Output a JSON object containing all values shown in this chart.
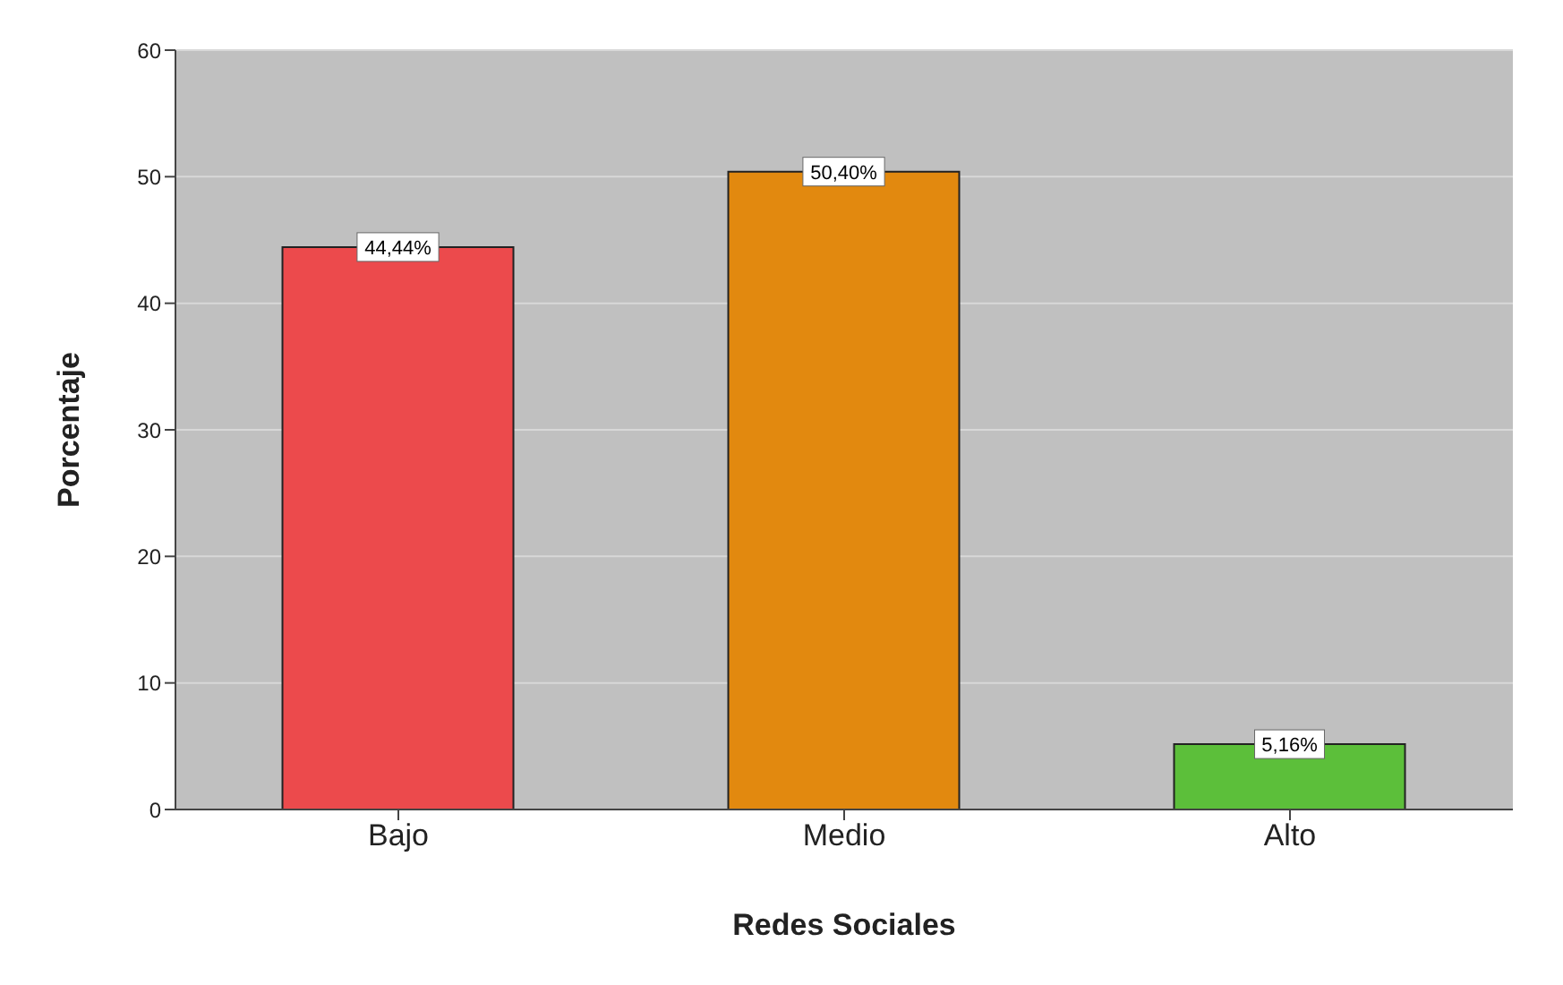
{
  "chart_data": {
    "type": "bar",
    "xlabel": "Redes Sociales",
    "ylabel": "Porcentaje",
    "categories": [
      "Bajo",
      "Medio",
      "Alto"
    ],
    "values": [
      44.44,
      50.4,
      5.16
    ],
    "value_labels": [
      "44,44%",
      "50,40%",
      "5,16%"
    ],
    "colors": [
      "#ec4a4c",
      "#e2890f",
      "#5cbf3a"
    ],
    "ylim": [
      0,
      60
    ],
    "yticks": [
      0,
      10,
      20,
      30,
      40,
      50,
      60
    ],
    "grid": "y"
  }
}
